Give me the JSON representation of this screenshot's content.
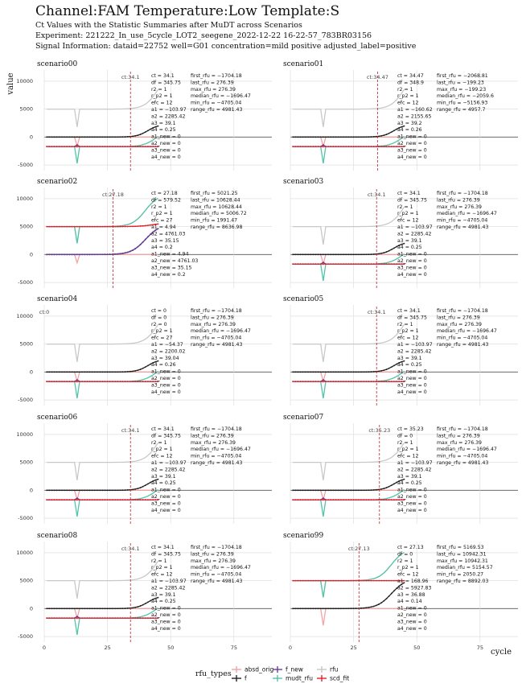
{
  "title": "Channel:FAM  Temperature:Low  Template:S",
  "subtitle_lines": [
    "Ct Values with the Statistic Summaries after MuDT across Scenarios",
    "Experiment: 221222_In_use_5cycle_LOT2_seegene_2022-12-22 16-22-57_783BR03156",
    "Signal Information: dataid=22752  well=G01  concentration=mild positive  adjusted_label=positive"
  ],
  "axis": {
    "xlabel": "cycle",
    "ylabel": "value"
  },
  "legend": {
    "title": "rfu_types",
    "items": [
      {
        "label": "absd_orig",
        "color": "#f4a3a3"
      },
      {
        "label": "f",
        "color": "#222222"
      },
      {
        "label": "f_new",
        "color": "#6a3d9a"
      },
      {
        "label": "mudt_rfu",
        "color": "#52c4a8"
      },
      {
        "label": "rfu",
        "color": "#c8c8c8"
      },
      {
        "label": "scd_fit",
        "color": "#e0202a"
      }
    ]
  },
  "chart_data": {
    "type": "line",
    "xlim": [
      0,
      90
    ],
    "ylim": [
      -6000,
      12000
    ],
    "x_ticks": [
      0,
      25,
      50,
      75
    ],
    "y_ticks": [
      -5000,
      0,
      5000,
      10000
    ],
    "grid": true,
    "legend_position": "bottom",
    "panels": [
      {
        "name": "scenario00",
        "ct": 34.1,
        "ct_label": "ct:34.1",
        "stats1": [
          "ct = 34.1",
          "df = 345.75",
          "r2 = 1",
          "r_p2 = 1",
          "efc = 12",
          "a1 = −103.97",
          "a2 = 2285.42",
          "a3 = 39.1",
          "a4 = 0.25",
          "a1_new = 0",
          "a2_new = 0",
          "a3_new = 0",
          "a4_new = 0"
        ],
        "stats2": [
          "first_rfu = −1704.18",
          "last_rfu = 276.39",
          "max_rfu = 276.39",
          "median_rfu = −1696.47",
          "min_rfu = −4705.04",
          "range_rfu = 4981.43"
        ]
      },
      {
        "name": "scenario01",
        "ct": 34.47,
        "ct_label": "ct:34.47",
        "stats1": [
          "ct = 34.47",
          "df = 348.9",
          "r2 = 1",
          "r_p2 = 1",
          "efc = 12",
          "a1 = −160.62",
          "a2 = 2155.65",
          "a3 = 39.2",
          "a4 = 0.26",
          "a1_new = 0",
          "a2_new = 0",
          "a3_new = 0",
          "a4_new = 0"
        ],
        "stats2": [
          "first_rfu = −2068.81",
          "last_rfu = −199.23",
          "max_rfu = −199.23",
          "median_rfu = −2059.6",
          "min_rfu = −5156.93",
          "range_rfu = 4957.7"
        ]
      },
      {
        "name": "scenario02",
        "ct": 27.18,
        "ct_label": "ct:27.18",
        "stats1": [
          "ct = 27.18",
          "df = 579.52",
          "r2 = 1",
          "r_p2 = 1",
          "efc = 27",
          "a1 = 4.94",
          "a2 = 4761.03",
          "a3 = 35.15",
          "a4 = 0.2",
          "a1_new = 4.94",
          "a2_new = 4761.03",
          "a3_new = 35.15",
          "a4_new = 0.2"
        ],
        "stats2": [
          "first_rfu = 5021.25",
          "last_rfu = 10628.44",
          "max_rfu = 10628.44",
          "median_rfu = 5006.72",
          "min_rfu = 1991.47",
          "range_rfu = 8636.98"
        ]
      },
      {
        "name": "scenario03",
        "ct": 34.1,
        "ct_label": "ct:34.1",
        "stats1": [
          "ct = 34.1",
          "df = 345.75",
          "r2 = 1",
          "r_p2 = 1",
          "efc = 12",
          "a1 = −103.97",
          "a2 = 2285.42",
          "a3 = 39.1",
          "a4 = 0.25",
          "a1_new = 0",
          "a2_new = 0",
          "a3_new = 0",
          "a4_new = 0"
        ],
        "stats2": [
          "first_rfu = −1704.18",
          "last_rfu = 276.39",
          "max_rfu = 276.39",
          "median_rfu = −1696.47",
          "min_rfu = −4705.04",
          "range_rfu = 4981.43"
        ]
      },
      {
        "name": "scenario04",
        "ct": 0,
        "ct_label": "ct:0",
        "stats1": [
          "ct = 0",
          "df = 0",
          "r2 = 0",
          "r_p2 = 1",
          "efc = 27",
          "a1 = −54.37",
          "a2 = 2200.02",
          "a3 = 39.04",
          "a4 = 0.26",
          "a1_new = 0",
          "a2_new = 0",
          "a3_new = 0",
          "a4_new = 0"
        ],
        "stats2": [
          "first_rfu = −1704.18",
          "last_rfu = 276.39",
          "max_rfu = 276.39",
          "median_rfu = −1696.47",
          "min_rfu = −4705.04",
          "range_rfu = 4981.43"
        ]
      },
      {
        "name": "scenario05",
        "ct": 34.1,
        "ct_label": "ct:34.1",
        "stats1": [
          "ct = 34.1",
          "df = 345.75",
          "r2 = 1",
          "r_p2 = 1",
          "efc = 12",
          "a1 = −103.97",
          "a2 = 2285.42",
          "a3 = 39.1",
          "a4 = 0.25",
          "a1_new = 0",
          "a2_new = 0",
          "a3_new = 0",
          "a4_new = 0"
        ],
        "stats2": [
          "first_rfu = −1704.18",
          "last_rfu = 276.39",
          "max_rfu = 276.39",
          "median_rfu = −1696.47",
          "min_rfu = −4705.04",
          "range_rfu = 4981.43"
        ]
      },
      {
        "name": "scenario06",
        "ct": 34.1,
        "ct_label": "ct:34.1",
        "stats1": [
          "ct = 34.1",
          "df = 345.75",
          "r2 = 1",
          "r_p2 = 1",
          "efc = 12",
          "a1 = −103.97",
          "a2 = 2285.42",
          "a3 = 39.1",
          "a4 = 0.25",
          "a1_new = 0",
          "a2_new = 0",
          "a3_new = 0",
          "a4_new = 0"
        ],
        "stats2": [
          "first_rfu = −1704.18",
          "last_rfu = 276.39",
          "max_rfu = 276.39",
          "median_rfu = −1696.47",
          "min_rfu = −4705.04",
          "range_rfu = 4981.43"
        ]
      },
      {
        "name": "scenario07",
        "ct": 35.23,
        "ct_label": "ct:35.23",
        "stats1": [
          "ct = 35.23",
          "df = 0",
          "r2 = 1",
          "r_p2 = 1",
          "efc = 12",
          "a1 = −103.97",
          "a2 = 2285.42",
          "a3 = 39.1",
          "a4 = 0.25",
          "a1_new = 0",
          "a2_new = 0",
          "a3_new = 0",
          "a4_new = 0"
        ],
        "stats2": [
          "first_rfu = −1704.18",
          "last_rfu = 276.39",
          "max_rfu = 276.39",
          "median_rfu = −1696.47",
          "min_rfu = −4705.04",
          "range_rfu = 4981.43"
        ]
      },
      {
        "name": "scenario08",
        "ct": 34.1,
        "ct_label": "ct:34.1",
        "stats1": [
          "ct = 34.1",
          "df = 345.75",
          "r2 = 1",
          "r_p2 = 1",
          "efc = 12",
          "a1 = −103.97",
          "a2 = 2285.42",
          "a3 = 39.1",
          "a4 = 0.25",
          "a1_new = 0",
          "a2_new = 0",
          "a3_new = 0",
          "a4_new = 0"
        ],
        "stats2": [
          "first_rfu = −1704.18",
          "last_rfu = 276.39",
          "max_rfu = 276.39",
          "median_rfu = −1696.47",
          "min_rfu = −4705.04",
          "range_rfu = 4981.43"
        ]
      },
      {
        "name": "scenario99",
        "ct": 27.13,
        "ct_label": "ct:27.13",
        "stats1": [
          "ct = 27.13",
          "df = 0",
          "r2 = 1",
          "r_p2 = 1",
          "efc = 12",
          "a1 = 168.96",
          "a2 = 5927.83",
          "a3 = 36.88",
          "a4 = 0.14",
          "a1_new = 0",
          "a2_new = 0",
          "a3_new = 0",
          "a4_new = 0"
        ],
        "stats2": [
          "first_rfu = 5169.53",
          "last_rfu = 10942.31",
          "max_rfu = 10942.31",
          "median_rfu = 5154.57",
          "min_rfu = 2050.27",
          "range_rfu = 8892.03"
        ]
      }
    ]
  }
}
